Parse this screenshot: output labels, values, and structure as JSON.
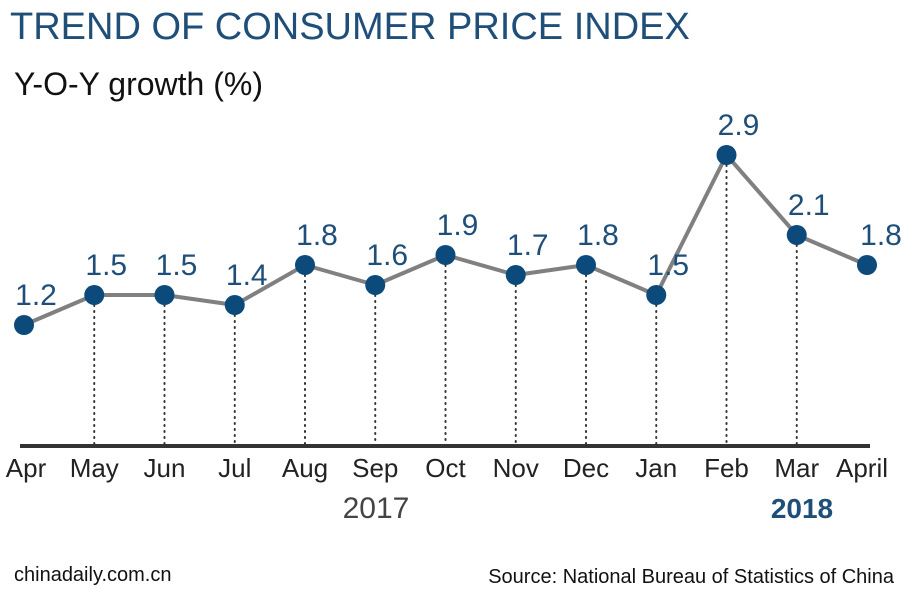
{
  "header": {
    "title": "TREND OF CONSUMER PRICE INDEX",
    "subtitle": "Y-O-Y growth (%)"
  },
  "footer": {
    "site": "chinadaily.com.cn",
    "source": "Source: National Bureau of Statistics of China"
  },
  "colors": {
    "title": "#1f4e79",
    "marker": "#0b4a7a",
    "line": "#808080",
    "value_label": "#1f4e79",
    "axis": "#333333",
    "year_2018": "#1f4e79"
  },
  "chart_data": {
    "type": "line",
    "title": "TREND OF CONSUMER PRICE INDEX",
    "ylabel": "Y-O-Y growth (%)",
    "categories": [
      "Apr",
      "May",
      "Jun",
      "Jul",
      "Aug",
      "Sep",
      "Oct",
      "Nov",
      "Dec",
      "Jan",
      "Feb",
      "Mar",
      "April"
    ],
    "values": [
      1.2,
      1.5,
      1.5,
      1.4,
      1.8,
      1.6,
      1.9,
      1.7,
      1.8,
      1.5,
      2.9,
      2.1,
      1.8
    ],
    "value_labels": [
      "1.2",
      "1.5",
      "1.5",
      "1.4",
      "1.8",
      "1.6",
      "1.9",
      "1.7",
      "1.8",
      "1.5",
      "2.9",
      "2.1",
      "1.8"
    ],
    "year_groups": [
      {
        "label": "2017",
        "start": 0,
        "end": 9,
        "bold": false
      },
      {
        "label": "2018",
        "start": 9,
        "end": 12,
        "bold": true
      }
    ],
    "ylim": [
      0,
      3.0
    ],
    "grid": false,
    "drop_lines": true
  }
}
